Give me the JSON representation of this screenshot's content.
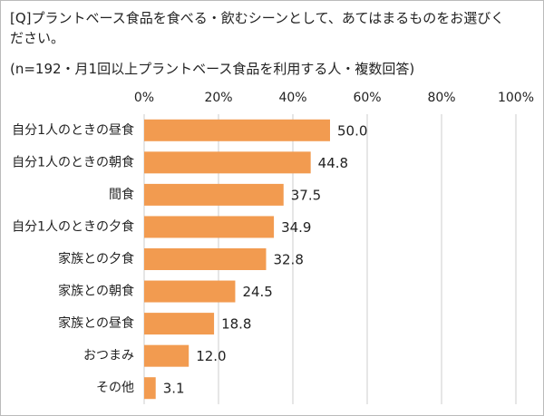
{
  "chart_data": {
    "type": "bar",
    "orientation": "horizontal",
    "title": "[Q]プラントベース食品を食べる・飲むシーンとして、あてはまるものをお選びください。",
    "subtitle": "(n=192・月1回以上プラントベース食品を利用する人・複数回答)",
    "categories": [
      "自分1人のときの昼食",
      "自分1人のときの朝食",
      "間食",
      "自分1人のときの夕食",
      "家族との夕食",
      "家族との朝食",
      "家族との昼食",
      "おつまみ",
      "その他"
    ],
    "values": [
      50.0,
      44.8,
      37.5,
      34.9,
      32.8,
      24.5,
      18.8,
      12.0,
      3.1
    ],
    "value_labels": [
      "50.0",
      "44.8",
      "37.5",
      "34.9",
      "32.8",
      "24.5",
      "18.8",
      "12.0",
      "3.1"
    ],
    "color": "#f29b50",
    "xlim": [
      0,
      100
    ],
    "xticks": [
      {
        "value": 0,
        "label": "0%"
      },
      {
        "value": 20,
        "label": "20%"
      },
      {
        "value": 40,
        "label": "40%"
      },
      {
        "value": 60,
        "label": "60%"
      },
      {
        "value": 80,
        "label": "80%"
      },
      {
        "value": 100,
        "label": "100%"
      }
    ],
    "grid": true
  }
}
